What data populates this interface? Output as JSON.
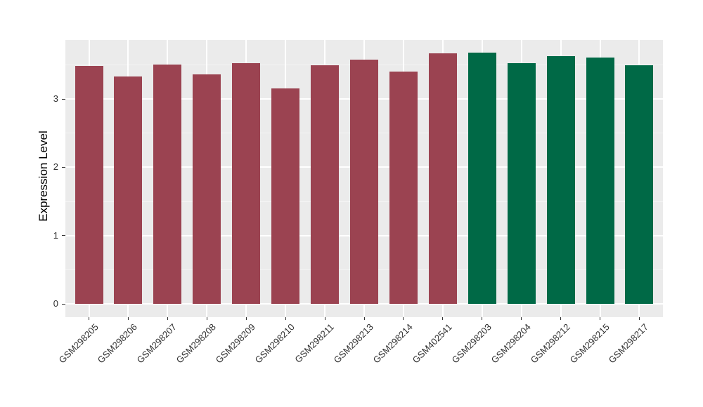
{
  "chart_data": {
    "type": "bar",
    "title": "",
    "xlabel": "",
    "ylabel": "Expression Level",
    "categories": [
      "GSM298205",
      "GSM298206",
      "GSM298207",
      "GSM298208",
      "GSM298209",
      "GSM298210",
      "GSM298211",
      "GSM298213",
      "GSM298214",
      "GSM402541",
      "GSM298203",
      "GSM298204",
      "GSM298212",
      "GSM298215",
      "GSM298217"
    ],
    "values": [
      3.48,
      3.33,
      3.5,
      3.36,
      3.53,
      3.16,
      3.49,
      3.58,
      3.4,
      3.67,
      3.68,
      3.52,
      3.63,
      3.61,
      3.49
    ],
    "bar_groups": [
      "group1",
      "group1",
      "group1",
      "group1",
      "group1",
      "group1",
      "group1",
      "group1",
      "group1",
      "group1",
      "group2",
      "group2",
      "group2",
      "group2",
      "group2"
    ],
    "group_colors": {
      "group1": "#9B4351",
      "group2": "#006946"
    },
    "ylim": [
      0,
      3.86
    ],
    "yticks": [
      0,
      1,
      2,
      3
    ],
    "yticks_minor": [
      0.5,
      1.5,
      2.5,
      3.5
    ],
    "grid": "on",
    "legend_position": "none",
    "panel_background": "#EBEBEB",
    "grid_major_color": "#FFFFFF",
    "grid_minor_color": "#F5F5F5",
    "axis_text_color": "#303030",
    "tick_mark_color": "#333333"
  }
}
